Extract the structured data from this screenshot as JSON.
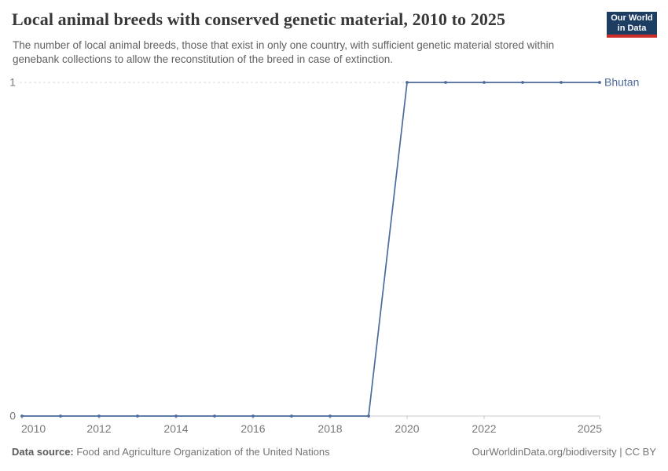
{
  "header": {
    "title": "Local animal breeds with conserved genetic material, 2010 to 2025",
    "subtitle": "The number of local animal breeds, those that exist in only one country, with sufficient genetic material stored within genebank collections to allow the reconstitution of the breed in case of extinction."
  },
  "logo": {
    "line1": "Our World",
    "line2": "in Data",
    "bg_color": "#1d3d63",
    "stripe_color": "#cd2d28"
  },
  "footer": {
    "source_label": "Data source:",
    "source_text": " Food and Agriculture Organization of the United Nations",
    "attribution": "OurWorldinData.org/biodiversity | CC BY"
  },
  "chart_data": {
    "type": "line",
    "title": "Local animal breeds with conserved genetic material, 2010 to 2025",
    "x": [
      2010,
      2011,
      2012,
      2013,
      2014,
      2015,
      2016,
      2017,
      2018,
      2019,
      2020,
      2021,
      2022,
      2023,
      2024,
      2025
    ],
    "series": [
      {
        "name": "Bhutan",
        "color": "#4c6a9c",
        "values": [
          0,
          0,
          0,
          0,
          0,
          0,
          0,
          0,
          0,
          0,
          1,
          1,
          1,
          1,
          1,
          1
        ]
      }
    ],
    "x_ticks": [
      2010,
      2012,
      2014,
      2016,
      2018,
      2020,
      2022,
      2025
    ],
    "y_ticks": [
      0,
      1
    ],
    "ylim": [
      0,
      1
    ],
    "xlabel": "",
    "ylabel": "",
    "grid": "horizontal dashed at non-zero ticks",
    "legend_position": "end-of-line label",
    "colors": {
      "line": "#4c6a9c",
      "axis": "#c9c9c9",
      "gridline": "#d9d9d9",
      "tick_text": "#787878"
    }
  }
}
